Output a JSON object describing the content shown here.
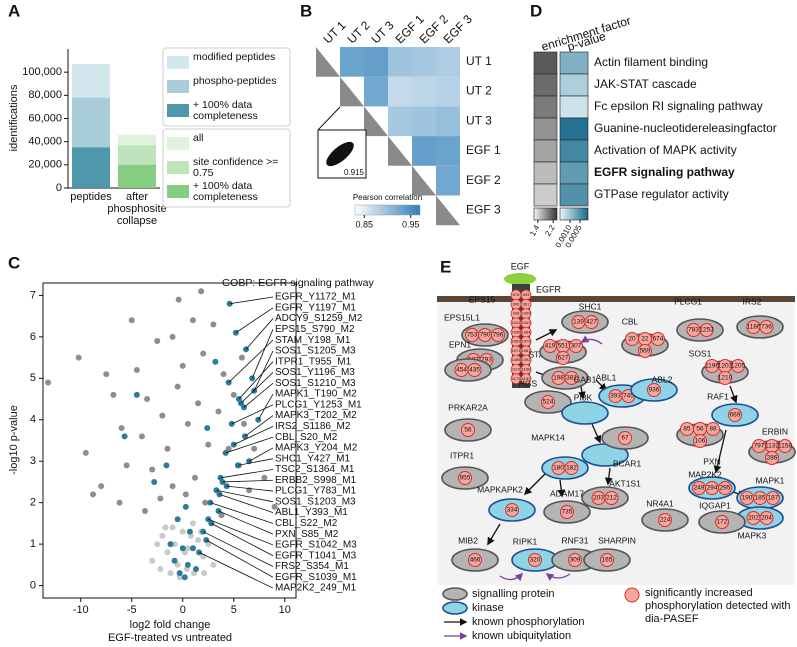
{
  "panel_labels": [
    "A",
    "B",
    "C",
    "D",
    "E"
  ],
  "chart_data": [
    {
      "type": "bar",
      "y_label": "identifications",
      "categories": [
        "peptides",
        "after phosphosite collapse"
      ],
      "ylim": [
        0,
        120000
      ],
      "yticks": [
        0,
        {
          "value": 20000,
          "label": "20,000"
        },
        {
          "value": 40000,
          "label": "40,000"
        },
        {
          "value": 60000,
          "label": "60,000"
        },
        {
          "value": 80000,
          "label": "80,000"
        },
        {
          "value": 100000,
          "label": "100,000"
        }
      ],
      "series": [
        {
          "name": "modified peptides",
          "color": "#d3e7ee",
          "values": [
            107000,
            null
          ]
        },
        {
          "name": "phospho-peptides",
          "color": "#a8cdd9",
          "values": [
            78000,
            null
          ]
        },
        {
          "name": "+ 100% data completeness",
          "color": "#4f98ab",
          "values": [
            35000,
            null
          ]
        },
        {
          "name": "all",
          "color": "#e1f2df",
          "values": [
            null,
            46000
          ]
        },
        {
          "name": "site confidence >= 0.75",
          "color": "#bfe3bb",
          "values": [
            null,
            37000
          ]
        },
        {
          "name": "+ 100% data completeness",
          "color": "#86cd83",
          "values": [
            null,
            20000
          ]
        }
      ]
    },
    {
      "type": "heatmap",
      "labels": [
        "UT 1",
        "UT 2",
        "UT 3",
        "EGF 1",
        "EGF 2",
        "EGF 3"
      ],
      "values": [
        [
          null,
          0.93,
          0.935,
          0.895,
          0.89,
          0.885
        ],
        [
          null,
          null,
          0.925,
          0.87,
          0.875,
          0.88
        ],
        [
          null,
          null,
          null,
          0.89,
          0.895,
          0.9
        ],
        [
          null,
          null,
          null,
          null,
          0.935,
          0.93
        ],
        [
          null,
          null,
          null,
          null,
          null,
          0.925
        ],
        [
          null,
          null,
          null,
          null,
          null,
          null
        ]
      ],
      "diagonal_color": "#8a8a8a",
      "colors": [
        "#ffffff",
        "#2f7fb8"
      ],
      "colorbar": {
        "title": "Pearson correlation",
        "lim": [
          0.83,
          0.97
        ],
        "ticks": [
          0.85,
          0.95
        ]
      },
      "annotation": "0.915"
    },
    {
      "type": "heatmap",
      "columns": [
        "enrichment factor",
        "p-value"
      ],
      "rows": [
        "Actin filament binding",
        "JAK-STAT cascade",
        "Fc epsilon RI signaling pathway",
        "Guanine-nucleotidereleasingfactor",
        "Activation of MAPK activity",
        "EGFR signaling pathway",
        "GTPase regulator activity"
      ],
      "values": [
        [
          2.15,
          0.0008
        ],
        [
          2.05,
          0.0011
        ],
        [
          1.95,
          0.0013
        ],
        [
          1.8,
          0.0002
        ],
        [
          1.7,
          0.0004
        ],
        [
          1.55,
          0.0006
        ],
        [
          1.45,
          0.0005
        ]
      ],
      "bold_rows": [
        5
      ],
      "colorbars": [
        {
          "lim": [
            1.2,
            2.4
          ],
          "ticks": [
            1.4,
            2.2
          ],
          "colors": [
            "#f4f4f4",
            "#333333"
          ]
        },
        {
          "lim": [
            0.0015,
            0.0001
          ],
          "ticks": [
            {
              "value": 0.001,
              "label": "0.0010"
            },
            0.0005
          ],
          "colors": [
            "#eaf7fb",
            "#16688a"
          ]
        }
      ]
    },
    {
      "type": "scatter",
      "x_label": [
        "log2 fold change",
        "EGF-treated vs untreated"
      ],
      "y_label": "-log10 p-value",
      "xlim": [
        -13.7,
        11.1
      ],
      "ylim": [
        -0.3,
        7.3
      ],
      "xticks": [
        -10,
        -5,
        0,
        5,
        10
      ],
      "yticks": [
        0,
        1,
        2,
        3,
        4,
        5,
        6,
        7
      ],
      "series": [
        {
          "color": "#c9c9c9",
          "x": [
            -3,
            -2.5,
            -2,
            -1.5,
            -1,
            -0.5,
            0,
            0.5,
            1,
            1.5,
            2,
            2.5,
            3,
            -1.2,
            -0.3,
            0.4,
            1.1,
            -2.2,
            2.1,
            -0.8,
            0.8,
            1.8,
            -1.7,
            0.2
          ],
          "values": [
            0.6,
            1.0,
            1.2,
            0.8,
            1.4,
            0.5,
            1.3,
            0.9,
            1.5,
            1.1,
            0.7,
            1.0,
            0.5,
            0.3,
            0.2,
            0.4,
            0.3,
            0.4,
            0.3,
            1.0,
            1.2,
            1.3,
            1.4,
            0.8
          ]
        },
        {
          "color": "#8e8e8e",
          "x": [
            -13.2,
            -10.2,
            -9.5,
            -8,
            -7.5,
            -6.8,
            -6,
            -5.5,
            -5,
            -4.5,
            -4,
            -3.5,
            -3,
            -2.5,
            -2,
            -1.5,
            -1,
            -0.5,
            0,
            0.5,
            1,
            1.5,
            2,
            2.5,
            3,
            3.5,
            4,
            4.5,
            5,
            5.5,
            6,
            6.5,
            7,
            8,
            9,
            -2.2,
            -1,
            0.3,
            1.2,
            2.2,
            -3.7,
            3.8,
            -0.4,
            -6.2,
            5.8,
            -8.8,
            1.8
          ],
          "values": [
            4.9,
            5.5,
            3.2,
            2.4,
            5.1,
            4.6,
            3.8,
            2.9,
            6.4,
            5.2,
            3.6,
            4.5,
            2.8,
            5.9,
            4.1,
            3.3,
            6.0,
            4.8,
            5.3,
            3.9,
            6.4,
            4.4,
            5.6,
            3.4,
            6.3,
            4.2,
            5.1,
            3.3,
            4.6,
            2.9,
            3.9,
            2.3,
            3.3,
            2.6,
            1.9,
            2.1,
            2.4,
            2.2,
            2.6,
            2.0,
            1.8,
            1.7,
            6.9,
            2.0,
            5.5,
            2.2,
            7.1
          ]
        },
        {
          "name": "GOBP: EGFR signaling pathway",
          "color": "#2b7d9a",
          "x": [
            4.6,
            5.2,
            6.2,
            6.8,
            4.5,
            7.0,
            5.5,
            5.7,
            6.0,
            7.4,
            4.8,
            6.1,
            5.0,
            4.2,
            6.5,
            5.4,
            3.7,
            3.9,
            4.3,
            3.3,
            3.6,
            2.7,
            3.5,
            2.5,
            2.8,
            2.0,
            2.3,
            1.6,
            0.2,
            0.5,
            -0.3,
            1.0,
            -0.8,
            0.7,
            -1.2,
            1.3,
            0,
            -0.5,
            2.4,
            -4.5,
            -5.7,
            3.2,
            -2.8,
            0.3,
            -1.6
          ],
          "values": [
            6.8,
            6.1,
            5.7,
            5.0,
            4.9,
            4.7,
            4.5,
            4.4,
            4.3,
            4.0,
            3.9,
            3.6,
            3.4,
            3.2,
            3.0,
            2.9,
            2.6,
            2.5,
            2.4,
            2.3,
            2.2,
            2.0,
            1.8,
            1.6,
            1.5,
            1.3,
            1.1,
            0.8,
            0.2,
            0.5,
            0.3,
            0.9,
            0.6,
            1.3,
            1.0,
            0.4,
            0.9,
            1.6,
            3.8,
            4.6,
            3.6,
            5.4,
            2.5,
            1.9,
            2.9
          ],
          "labels": [
            "EGFR_Y1172_M1",
            "EGFR_Y1197_M1",
            "ADCY9_S1259_M2",
            "EPS15_S790_M2",
            "STAM_Y198_M1",
            "SOS1_S1205_M3",
            "ITPR1_T955_M1",
            "SOS1_Y1196_M3",
            "SOS1_S1210_M3",
            "MAPK1_T190_M2",
            "PLCG1_Y1253_M1",
            "MAPK3_T202_M2",
            "IRS2_S1186_M2",
            "CBL_S20_M2",
            "MAPK3_Y204_M2",
            "SHC1_Y427_M1",
            "TSC2_S1364_M1",
            "ERBB2_S998_M1",
            "PLCG1_Y783_M1",
            "SOS1_S1203_M3",
            "ABL1_Y393_M1",
            "CBL_S22_M2",
            "PXN_S85_M2",
            "EGFR_S1042_M3",
            "EGFR_T1041_M3",
            "FRS2_S354_M1",
            "EGFR_S1039_M1",
            "MAP2K2_249_M1",
            null,
            null,
            null,
            null,
            null,
            null,
            null,
            null,
            null,
            null,
            null,
            null,
            null,
            null,
            null,
            null,
            null
          ]
        }
      ]
    }
  ],
  "diagram": {
    "ligand": "EGF",
    "receptor": {
      "label": "EGFR",
      "sites": [
        678,
        693,
        695,
        991,
        998,
        1039,
        1041,
        1042,
        1045,
        1064,
        1069,
        1070,
        1071,
        1081,
        1086,
        1092,
        1110,
        1166,
        1172,
        1197
      ]
    },
    "nodes": [
      {
        "label": "SHC1",
        "kinase": false,
        "sites": [
          139,
          427
        ]
      },
      {
        "label": "CBL",
        "kinase": false,
        "sites": [
          20,
          22,
          674,
          569
        ]
      },
      {
        "label": "PLCG1",
        "kinase": false,
        "sites": [
          783,
          1253
        ]
      },
      {
        "label": "IRS2",
        "kinase": false,
        "sites": [
          1186,
          736
        ]
      },
      {
        "label": "EPS15",
        "kinase": false,
        "sites": [
          753,
          790,
          796
        ]
      },
      {
        "label": "EPS15L1",
        "kinase": false,
        "sites": [
          107,
          793
        ]
      },
      {
        "label": "EPN1",
        "kinase": false,
        "sites": [
          454,
          435
        ]
      },
      {
        "label": "STAM",
        "kinase": false,
        "sites": [
          198,
          381
        ]
      },
      {
        "label": "HGS",
        "kinase": false,
        "sites": [
          524
        ]
      },
      {
        "label": "GAB1",
        "kinase": false,
        "sites": [
          419,
          551,
          307,
          627
        ]
      },
      {
        "label": "ABL1",
        "kinase": true,
        "sites": [
          393,
          745
        ]
      },
      {
        "label": "ABL2",
        "kinase": true,
        "sites": [
          936
        ]
      },
      {
        "label": "PI3K",
        "kinase": true,
        "sites": []
      },
      {
        "label": "SOS1",
        "kinase": false,
        "sites": [
          1196,
          1203,
          1205,
          1210
        ]
      },
      {
        "label": "RAF1",
        "kinase": true,
        "sites": [
          669
        ]
      },
      {
        "label": "PRKAR2A",
        "kinase": false,
        "sites": [
          56
        ]
      },
      {
        "label": "ITPR1",
        "kinase": false,
        "sites": [
          955
        ]
      },
      {
        "label": "AKT1",
        "kinase": true,
        "sites": []
      },
      {
        "label": "BCAR1",
        "kinase": false,
        "sites": [
          67
        ]
      },
      {
        "label": "PXN",
        "kinase": false,
        "sites": [
          85,
          56,
          88,
          106
        ]
      },
      {
        "label": "ERBIN",
        "kinase": false,
        "sites": [
          797,
          1132,
          1158,
          286
        ]
      },
      {
        "label": "MAP2K2",
        "kinase": true,
        "sites": [
          249,
          294,
          295
        ]
      },
      {
        "label": "MAPK14",
        "kinase": true,
        "sites": [
          180,
          182
        ]
      },
      {
        "label": "MAPK1",
        "kinase": true,
        "sites": [
          190,
          185,
          187
        ]
      },
      {
        "label": "MAPK3",
        "kinase": true,
        "sites": [
          202,
          204
        ]
      },
      {
        "label": "AKT1S1",
        "kinase": false,
        "sites": [
          203,
          212
        ]
      },
      {
        "label": "MAPKAPK2",
        "kinase": true,
        "sites": [
          334
        ]
      },
      {
        "label": "ADAM17",
        "kinase": false,
        "sites": [
          735
        ]
      },
      {
        "label": "NR4A1",
        "kinase": false,
        "sites": [
          224
        ]
      },
      {
        "label": "IQGAP1",
        "kinase": false,
        "sites": [
          172
        ]
      },
      {
        "label": "MIB2",
        "kinase": false,
        "sites": [
          466
        ]
      },
      {
        "label": "RIPK1",
        "kinase": true,
        "sites": [
          320
        ]
      },
      {
        "label": "RNF31",
        "kinase": false,
        "sites": [
          309
        ]
      },
      {
        "label": "SHARPIN",
        "kinase": false,
        "sites": [
          165
        ]
      }
    ],
    "legend": [
      "signalling protein",
      "kinase",
      "known phosphorylation",
      "known ubiquitylation",
      "significantly increased phosphorylation detected with dia-PASEF"
    ]
  }
}
